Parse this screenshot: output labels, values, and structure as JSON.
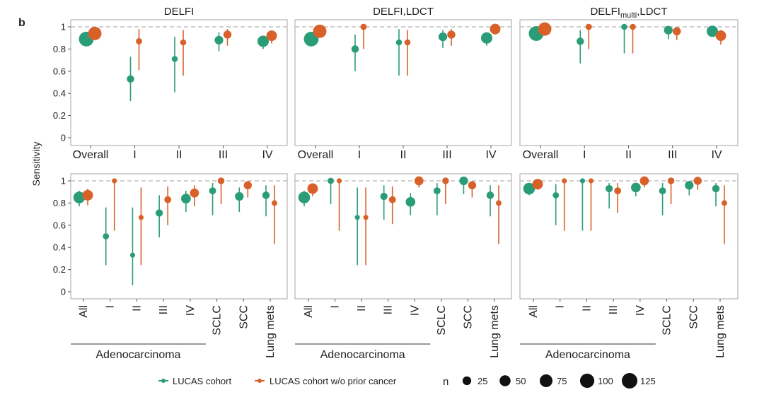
{
  "panel_letter": "b",
  "y_axis_label": "Sensitivity",
  "group_label": "Adenocarcinoma",
  "legend": {
    "series_1": "LUCAS cohort",
    "series_2": "LUCAS cohort w/o prior cancer",
    "size_title": "n",
    "sizes": [
      "25",
      "50",
      "75",
      "100",
      "125"
    ]
  },
  "colors": {
    "series_1": "#2a9d78",
    "series_2": "#d8612a",
    "reference_line": "#b3b3b3"
  },
  "chart_data": [
    {
      "type": "scatter",
      "title": "DELFI",
      "ylabel": "Sensitivity",
      "ylim": [
        0,
        1
      ],
      "yticks": [
        "0",
        "0.2",
        "0.4",
        "0.6",
        "0.8",
        "1"
      ],
      "categories": [
        "Overall",
        "I",
        "II",
        "III",
        "IV"
      ],
      "reference_line": 1,
      "series": [
        {
          "name": "LUCAS cohort",
          "values": [
            0.89,
            0.53,
            0.71,
            0.88,
            0.87
          ],
          "lower": [
            0.86,
            0.33,
            0.41,
            0.78,
            0.8
          ],
          "upper": [
            0.92,
            0.73,
            0.91,
            0.95,
            0.92
          ],
          "n": [
            110,
            15,
            7,
            25,
            55
          ]
        },
        {
          "name": "LUCAS cohort w/o prior cancer",
          "values": [
            0.94,
            0.87,
            0.86,
            0.93,
            0.92
          ],
          "lower": [
            0.89,
            0.61,
            0.56,
            0.83,
            0.85
          ],
          "upper": [
            0.97,
            0.98,
            0.97,
            0.98,
            0.96
          ],
          "n": [
            85,
            8,
            7,
            20,
            45
          ]
        }
      ]
    },
    {
      "type": "scatter",
      "title": "DELFI,LDCT",
      "ylabel": "Sensitivity",
      "ylim": [
        0,
        1
      ],
      "yticks": [
        "0",
        "0.2",
        "0.4",
        "0.6",
        "0.8",
        "1"
      ],
      "categories": [
        "Overall",
        "I",
        "II",
        "III",
        "IV"
      ],
      "reference_line": 1,
      "series": [
        {
          "name": "LUCAS cohort",
          "values": [
            0.89,
            0.8,
            0.86,
            0.91,
            0.9
          ],
          "lower": [
            0.86,
            0.6,
            0.56,
            0.81,
            0.83
          ],
          "upper": [
            0.92,
            0.93,
            0.98,
            0.97,
            0.95
          ],
          "n": [
            110,
            15,
            7,
            25,
            55
          ]
        },
        {
          "name": "LUCAS cohort w/o prior cancer",
          "values": [
            0.96,
            1.0,
            0.86,
            0.93,
            0.98
          ],
          "lower": [
            0.92,
            0.8,
            0.56,
            0.83,
            0.93
          ],
          "upper": [
            0.98,
            1.0,
            0.97,
            0.98,
            1.0
          ],
          "n": [
            85,
            8,
            7,
            20,
            45
          ]
        }
      ]
    },
    {
      "type": "scatter",
      "title": "DELFI_multi,LDCT",
      "ylabel": "Sensitivity",
      "ylim": [
        0,
        1
      ],
      "yticks": [
        "0",
        "0.2",
        "0.4",
        "0.6",
        "0.8",
        "1"
      ],
      "categories": [
        "Overall",
        "I",
        "II",
        "III",
        "IV"
      ],
      "reference_line": 1,
      "series": [
        {
          "name": "LUCAS cohort",
          "values": [
            0.94,
            0.87,
            1.0,
            0.97,
            0.96
          ],
          "lower": [
            0.9,
            0.67,
            0.76,
            0.89,
            0.91
          ],
          "upper": [
            0.97,
            0.97,
            1.0,
            0.99,
            0.98
          ],
          "n": [
            110,
            15,
            7,
            25,
            55
          ]
        },
        {
          "name": "LUCAS cohort w/o prior cancer",
          "values": [
            0.98,
            1.0,
            1.0,
            0.96,
            0.92
          ],
          "lower": [
            0.95,
            0.8,
            0.76,
            0.88,
            0.84
          ],
          "upper": [
            0.99,
            1.0,
            1.0,
            0.99,
            0.97
          ],
          "n": [
            85,
            8,
            7,
            20,
            45
          ]
        }
      ]
    },
    {
      "type": "scatter",
      "title": "",
      "ylabel": "Sensitivity",
      "ylim": [
        0,
        1
      ],
      "yticks": [
        "0",
        "0.2",
        "0.4",
        "0.6",
        "0.8",
        "1"
      ],
      "categories": [
        "All",
        "I",
        "II",
        "III",
        "IV",
        "SCLC",
        "SCC",
        "Lung mets"
      ],
      "reference_line": 1,
      "series": [
        {
          "name": "LUCAS cohort",
          "values": [
            0.85,
            0.5,
            0.33,
            0.71,
            0.84,
            0.91,
            0.86,
            0.87
          ],
          "lower": [
            0.77,
            0.24,
            0.06,
            0.49,
            0.72,
            0.69,
            0.72,
            0.68
          ],
          "upper": [
            0.91,
            0.76,
            0.76,
            0.87,
            0.91,
            0.98,
            0.94,
            0.96
          ],
          "n": [
            60,
            8,
            3,
            14,
            35,
            12,
            25,
            15
          ]
        },
        {
          "name": "LUCAS cohort w/o prior cancer",
          "values": [
            0.87,
            1.0,
            0.67,
            0.83,
            0.89,
            1.0,
            0.96,
            0.8
          ],
          "lower": [
            0.78,
            0.55,
            0.24,
            0.6,
            0.77,
            0.79,
            0.85,
            0.43
          ],
          "upper": [
            0.93,
            1.0,
            0.94,
            0.95,
            0.96,
            1.0,
            0.99,
            0.96
          ],
          "n": [
            45,
            3,
            3,
            12,
            28,
            10,
            20,
            5
          ]
        }
      ]
    },
    {
      "type": "scatter",
      "title": "",
      "ylabel": "Sensitivity",
      "ylim": [
        0,
        1
      ],
      "yticks": [
        "0",
        "0.2",
        "0.4",
        "0.6",
        "0.8",
        "1"
      ],
      "categories": [
        "All",
        "I",
        "II",
        "III",
        "IV",
        "SCLC",
        "SCC",
        "Lung mets"
      ],
      "reference_line": 1,
      "series": [
        {
          "name": "LUCAS cohort",
          "values": [
            0.85,
            1.0,
            0.67,
            0.86,
            0.81,
            0.91,
            1.0,
            0.87
          ],
          "lower": [
            0.77,
            0.79,
            0.24,
            0.65,
            0.69,
            0.69,
            0.88,
            0.68
          ],
          "upper": [
            0.91,
            1.0,
            0.94,
            0.96,
            0.89,
            0.98,
            1.0,
            0.96
          ],
          "n": [
            60,
            8,
            3,
            14,
            35,
            12,
            25,
            15
          ]
        },
        {
          "name": "LUCAS cohort w/o prior cancer",
          "values": [
            0.93,
            1.0,
            0.67,
            0.83,
            1.0,
            1.0,
            0.96,
            0.8
          ],
          "lower": [
            0.86,
            0.55,
            0.24,
            0.61,
            0.94,
            0.79,
            0.85,
            0.43
          ],
          "upper": [
            0.97,
            1.0,
            0.94,
            0.95,
            1.0,
            1.0,
            0.99,
            0.96
          ],
          "n": [
            45,
            3,
            3,
            12,
            28,
            10,
            20,
            5
          ]
        }
      ]
    },
    {
      "type": "scatter",
      "title": "",
      "ylabel": "Sensitivity",
      "ylim": [
        0,
        1
      ],
      "yticks": [
        "0",
        "0.2",
        "0.4",
        "0.6",
        "0.8",
        "1"
      ],
      "categories": [
        "All",
        "I",
        "II",
        "III",
        "IV",
        "SCLC",
        "SCC",
        "Lung mets"
      ],
      "reference_line": 1,
      "series": [
        {
          "name": "LUCAS cohort",
          "values": [
            0.93,
            0.87,
            1.0,
            0.93,
            0.94,
            0.91,
            0.96,
            0.93
          ],
          "lower": [
            0.87,
            0.6,
            0.55,
            0.75,
            0.86,
            0.69,
            0.87,
            0.77
          ],
          "upper": [
            0.97,
            0.97,
            1.0,
            0.98,
            0.98,
            0.98,
            0.99,
            0.98
          ],
          "n": [
            60,
            8,
            3,
            14,
            35,
            12,
            25,
            15
          ]
        },
        {
          "name": "LUCAS cohort w/o prior cancer",
          "values": [
            0.97,
            1.0,
            1.0,
            0.91,
            1.0,
            1.0,
            1.0,
            0.8
          ],
          "lower": [
            0.92,
            0.55,
            0.55,
            0.71,
            0.94,
            0.79,
            0.92,
            0.43
          ],
          "upper": [
            0.99,
            1.0,
            1.0,
            0.98,
            1.0,
            1.0,
            1.0,
            0.96
          ],
          "n": [
            45,
            3,
            3,
            12,
            28,
            10,
            20,
            5
          ]
        }
      ]
    }
  ]
}
